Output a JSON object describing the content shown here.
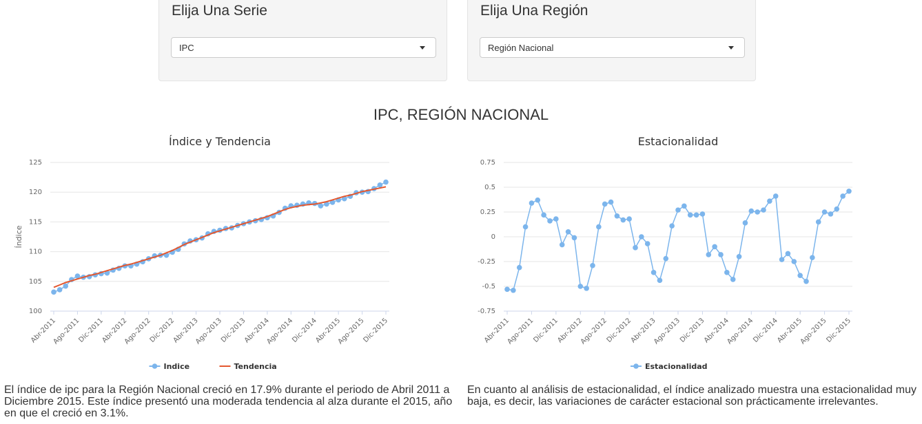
{
  "filters": {
    "serie": {
      "label": "Elija Una Serie",
      "value": "IPC"
    },
    "region": {
      "label": "Elija Una Región",
      "value": "Región Nacional"
    }
  },
  "page_title": "IPC, REGIÓN NACIONAL",
  "chart_data": [
    {
      "type": "line",
      "title": "Índice y Tendencia",
      "xlabel": "",
      "ylabel": "Índice",
      "ylim": [
        100,
        125
      ],
      "yticks": [
        100,
        105,
        110,
        115,
        120,
        125
      ],
      "xticks": [
        "Abr-2011",
        "Ago-2011",
        "Dic-2011",
        "Abr-2012",
        "Ago-2012",
        "Dic-2012",
        "Abr-2013",
        "Ago-2013",
        "Dic-2013",
        "Abr-2014",
        "Ago-2014",
        "Dic-2014",
        "Abr-2015",
        "Ago-2015",
        "Dic-2015"
      ],
      "grid": true,
      "legend": "bottom-center",
      "x_start": "Abr-2011",
      "series": [
        {
          "name": "Indice",
          "color": "#7cb5ec",
          "markers": true,
          "values": [
            103.2,
            103.6,
            104.2,
            105.3,
            105.9,
            105.7,
            105.8,
            106.1,
            106.3,
            106.4,
            106.9,
            107.2,
            107.6,
            107.6,
            107.9,
            108.3,
            108.8,
            109.3,
            109.4,
            109.4,
            109.9,
            110.4,
            111.3,
            111.8,
            112.0,
            112.3,
            113.0,
            113.4,
            113.6,
            113.9,
            114.0,
            114.4,
            114.7,
            115.0,
            115.2,
            115.4,
            115.7,
            116.0,
            116.6,
            117.3,
            117.7,
            117.8,
            118.0,
            118.2,
            118.1,
            117.7,
            118.0,
            118.3,
            118.7,
            118.9,
            119.3,
            119.9,
            120.0,
            120.1,
            120.6,
            121.2,
            121.7
          ]
        },
        {
          "name": "Tendencia",
          "color": "#e4572e",
          "markers": false,
          "values": [
            104.0,
            104.4,
            104.8,
            105.1,
            105.4,
            105.7,
            106.0,
            106.2,
            106.5,
            106.8,
            107.1,
            107.4,
            107.7,
            107.9,
            108.2,
            108.5,
            108.8,
            109.1,
            109.4,
            109.8,
            110.2,
            110.7,
            111.2,
            111.6,
            112.0,
            112.4,
            112.8,
            113.2,
            113.5,
            113.8,
            114.1,
            114.4,
            114.7,
            115.0,
            115.3,
            115.6,
            115.9,
            116.3,
            116.7,
            117.1,
            117.4,
            117.6,
            117.8,
            117.9,
            118.0,
            118.2,
            118.4,
            118.7,
            119.0,
            119.3,
            119.5,
            119.8,
            120.1,
            120.3,
            120.5,
            120.7,
            120.9
          ]
        }
      ]
    },
    {
      "type": "line",
      "title": "Estacionalidad",
      "xlabel": "",
      "ylabel": "",
      "ylim": [
        -0.75,
        0.75
      ],
      "yticks": [
        -0.75,
        -0.5,
        -0.25,
        0,
        0.25,
        0.5,
        0.75
      ],
      "xticks": [
        "Abr-2011",
        "Ago-2011",
        "Dic-2011",
        "Abr-2012",
        "Ago-2012",
        "Dic-2012",
        "Abr-2013",
        "Ago-2013",
        "Dic-2013",
        "Abr-2014",
        "Ago-2014",
        "Dic-2014",
        "Abr-2015",
        "Ago-2015",
        "Dic-2015"
      ],
      "grid": true,
      "legend": "bottom-center",
      "x_start": "Abr-2011",
      "series": [
        {
          "name": "Estacionalidad",
          "color": "#7cb5ec",
          "markers": true,
          "values": [
            -0.53,
            -0.54,
            -0.31,
            0.1,
            0.34,
            0.37,
            0.22,
            0.16,
            0.18,
            -0.08,
            0.05,
            -0.01,
            -0.5,
            -0.52,
            -0.29,
            0.1,
            0.33,
            0.35,
            0.21,
            0.17,
            0.18,
            -0.11,
            0.0,
            -0.07,
            -0.36,
            -0.44,
            -0.22,
            0.11,
            0.27,
            0.31,
            0.22,
            0.22,
            0.23,
            -0.18,
            -0.1,
            -0.18,
            -0.36,
            -0.43,
            -0.2,
            0.14,
            0.26,
            0.25,
            0.27,
            0.36,
            0.41,
            -0.23,
            -0.17,
            -0.25,
            -0.39,
            -0.45,
            -0.21,
            0.15,
            0.25,
            0.23,
            0.28,
            0.41,
            0.46
          ]
        }
      ]
    }
  ],
  "descriptions": {
    "left": "El índice de ipc para la Región Nacional creció en 17.9% durante el periodo de Abril 2011 a Diciembre 2015. Este índice presentó una moderada tendencia al alza durante el 2015, año en que el creció en 3.1%.",
    "right": "En cuanto al análisis de estacionalidad, el índice analizado muestra una estacionalidad muy baja, es decir, las variaciones de carácter estacional son prácticamente irrelevantes."
  }
}
